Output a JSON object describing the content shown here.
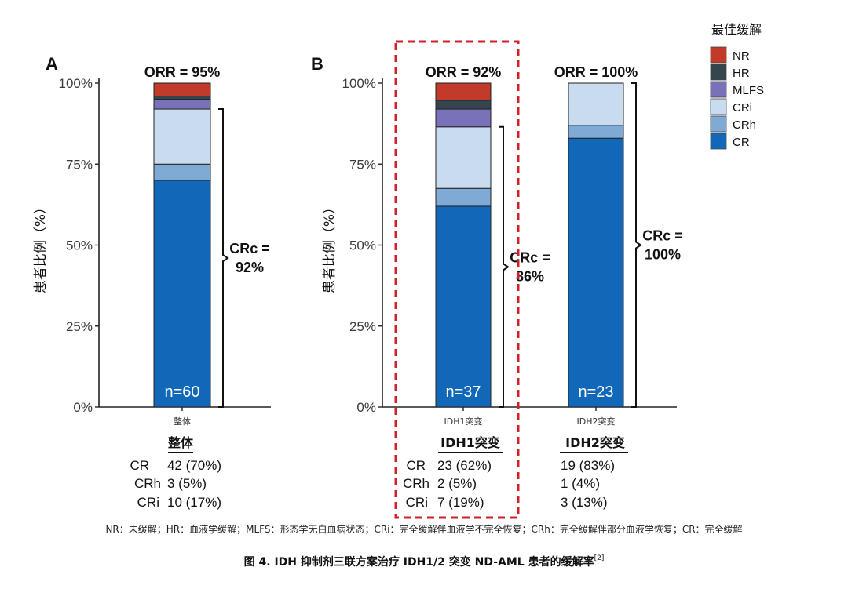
{
  "chart_data": {
    "type": "bar",
    "stacked": true,
    "ylim": [
      0,
      100
    ],
    "yticks": [
      "0%",
      "25%",
      "50%",
      "75%",
      "100%"
    ],
    "ylabel": "患者比例（%）",
    "legend": {
      "title": "最佳缓解",
      "placement": "right",
      "items": [
        {
          "key": "NR",
          "label": "NR",
          "color": "#C23B2A"
        },
        {
          "key": "HR",
          "label": "HR",
          "color": "#34454D"
        },
        {
          "key": "MLFS",
          "label": "MLFS",
          "color": "#7A72B8"
        },
        {
          "key": "CRi",
          "label": "CRi",
          "color": "#C9DCEF"
        },
        {
          "key": "CRh",
          "label": "CRh",
          "color": "#7FAAD6"
        },
        {
          "key": "CR",
          "label": "CR",
          "color": "#1268B8"
        }
      ]
    },
    "panels": [
      {
        "label": "A",
        "bars": [
          {
            "category": "整体",
            "orr": "ORR = 95%",
            "n": "n=60",
            "crc": "CRc =\n92%",
            "segments": [
              {
                "key": "CR",
                "value": 70
              },
              {
                "key": "CRh",
                "value": 5
              },
              {
                "key": "CRi",
                "value": 17
              },
              {
                "key": "MLFS",
                "value": 3
              },
              {
                "key": "HR",
                "value": 1
              },
              {
                "key": "NR",
                "value": 4
              }
            ]
          }
        ]
      },
      {
        "label": "B",
        "bars": [
          {
            "category": "IDH1突变",
            "orr": "ORR = 92%",
            "n": "n=37",
            "crc": "CRc =\n86%",
            "highlight": true,
            "segments": [
              {
                "key": "CR",
                "value": 62
              },
              {
                "key": "CRh",
                "value": 5.5
              },
              {
                "key": "CRi",
                "value": 19
              },
              {
                "key": "MLFS",
                "value": 5.5
              },
              {
                "key": "HR",
                "value": 2.7
              },
              {
                "key": "NR",
                "value": 5.3
              }
            ]
          },
          {
            "category": "IDH2突变",
            "orr": "ORR = 100%",
            "n": "n=23",
            "crc": "CRc =\n100%",
            "segments": [
              {
                "key": "CR",
                "value": 83
              },
              {
                "key": "CRh",
                "value": 4
              },
              {
                "key": "CRi",
                "value": 13
              }
            ]
          }
        ]
      }
    ]
  },
  "tables": {
    "overall": {
      "heading": "整体",
      "rows": [
        {
          "label": "CR",
          "value": "42 (70%)"
        },
        {
          "label": "CRh",
          "value": "3 (5%)"
        },
        {
          "label": "CRi",
          "value": "10 (17%)"
        }
      ]
    },
    "idh1": {
      "heading": "IDH1突变",
      "rows": [
        {
          "label": "CR",
          "value": "23 (62%)"
        },
        {
          "label": "CRh",
          "value": "2 (5%)"
        },
        {
          "label": "CRi",
          "value": "7 (19%)"
        }
      ]
    },
    "idh2": {
      "heading": "IDH2突变",
      "rows": [
        {
          "value": "19 (83%)"
        },
        {
          "value": "1 (4%)"
        },
        {
          "value": "3 (13%)"
        }
      ]
    }
  },
  "footnote": "NR：未缓解；HR：血液学缓解；MLFS：形态学无白血病状态；CRi：完全缓解伴血液学不完全恢复；CRh：完全缓解伴部分血液学恢复；CR：完全缓解",
  "caption": {
    "text": "图 4. IDH 抑制剂三联方案治疗 IDH1/2 突变 ND-AML 患者的缓解率",
    "ref": "[2]"
  }
}
